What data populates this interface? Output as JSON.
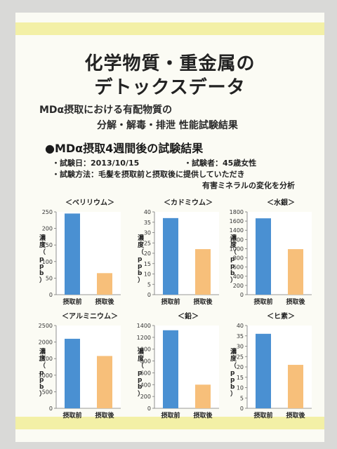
{
  "header": {
    "title_line1": "化学物質・重金属の",
    "title_line2": "デトックスデータ",
    "subtitle_line1": "MDα摂取における有配物質の",
    "subtitle_line2": "分解・解毒・排泄 性能試験結果"
  },
  "section": {
    "heading": "●MDα摂取4週間後の試験結果",
    "test_date": "・試験日：2013/10/15",
    "subject": "・試験者：45歳女性",
    "method_line1": "・試験方法：毛髪を摂取前と摂取後に提供していただき",
    "method_line2": "有害ミネラルの変化を分析"
  },
  "colors": {
    "before": "#4a90d2",
    "after": "#f7bf7a"
  },
  "chart_data": [
    {
      "type": "bar",
      "title": "＜ベリリウム＞",
      "ylabel": "濃度（ppb）",
      "categories": [
        "摂取前",
        "摂取後"
      ],
      "values": [
        245,
        65
      ],
      "ylim": [
        0,
        250
      ],
      "yticks": [
        0,
        50,
        100,
        150,
        200,
        250
      ]
    },
    {
      "type": "bar",
      "title": "＜カドミウム＞",
      "ylabel": "濃度（ppb）",
      "categories": [
        "摂取前",
        "摂取後"
      ],
      "values": [
        37,
        22
      ],
      "ylim": [
        0,
        40
      ],
      "yticks": [
        0,
        5,
        10,
        15,
        20,
        25,
        30,
        35,
        40
      ]
    },
    {
      "type": "bar",
      "title": "＜水銀＞",
      "ylabel": "濃度（ppb）",
      "categories": [
        "摂取前",
        "摂取後"
      ],
      "values": [
        1660,
        990
      ],
      "ylim": [
        0,
        1800
      ],
      "yticks": [
        0,
        200,
        400,
        600,
        800,
        1000,
        1200,
        1400,
        1600,
        1800
      ]
    },
    {
      "type": "bar",
      "title": "＜アルミニウム＞",
      "ylabel": "濃度（ppb）",
      "categories": [
        "摂取前",
        "摂取後"
      ],
      "values": [
        2100,
        1580
      ],
      "ylim": [
        0,
        2500
      ],
      "yticks": [
        0,
        500,
        1000,
        1500,
        2000,
        2500
      ]
    },
    {
      "type": "bar",
      "title": "＜鉛＞",
      "ylabel": "濃度（ppb）",
      "categories": [
        "摂取前",
        "摂取後"
      ],
      "values": [
        1320,
        400
      ],
      "ylim": [
        0,
        1400
      ],
      "yticks": [
        0,
        200,
        400,
        600,
        800,
        1000,
        1200,
        1400
      ]
    },
    {
      "type": "bar",
      "title": "＜ヒ素＞",
      "ylabel": "濃度（ppb）",
      "categories": [
        "摂取前",
        "摂取後"
      ],
      "values": [
        36,
        21
      ],
      "ylim": [
        0,
        40
      ],
      "yticks": [
        0,
        5,
        10,
        15,
        20,
        25,
        30,
        35,
        40
      ]
    }
  ]
}
